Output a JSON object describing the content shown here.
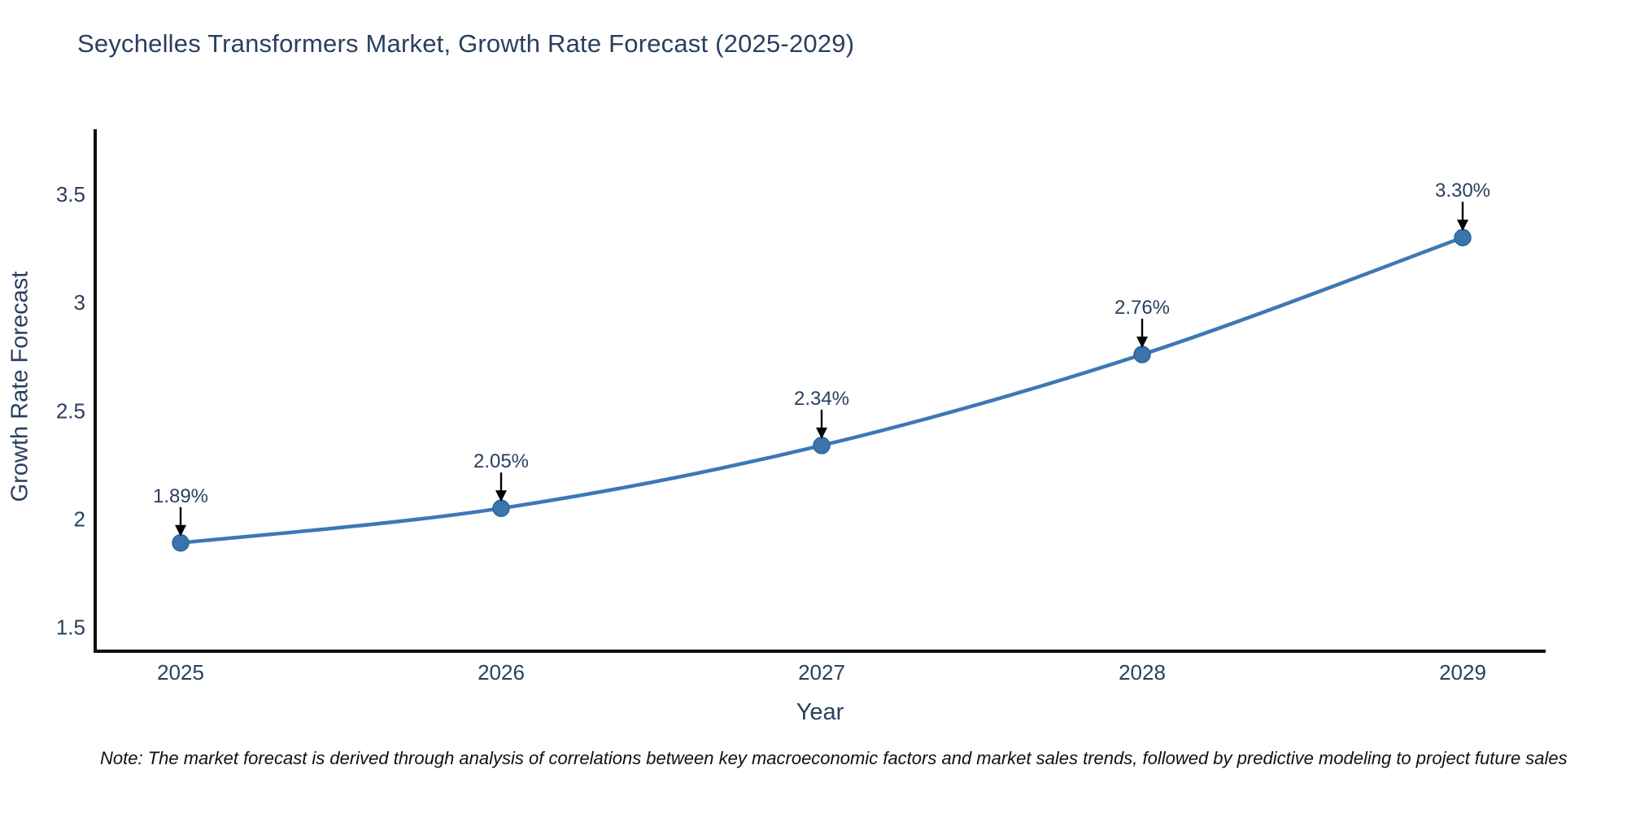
{
  "title": "Seychelles Transformers Market, Growth Rate Forecast (2025-2029)",
  "note": "Note: The market forecast is derived through analysis of correlations between key macroeconomic factors and market sales trends, followed by predictive modeling to project future sales",
  "colors": {
    "title_text": "#2a3f5f",
    "tick_text": "#2a3f5f",
    "axis_line": "#0e0e0e",
    "line": "#3d78b4",
    "marker_fill": "#3a74af",
    "marker_stroke": "#2e6398",
    "annotation_text": "#2a3f5f",
    "arrow": "#000000",
    "note_text": "#111111"
  },
  "chart_data": {
    "type": "line",
    "title": "Seychelles Transformers Market, Growth Rate Forecast (2025-2029)",
    "xlabel": "Year",
    "ylabel": "Growth Rate Forecast",
    "categories": [
      "2025",
      "2026",
      "2027",
      "2028",
      "2029"
    ],
    "series": [
      {
        "name": "Growth Rate Forecast",
        "values": [
          1.89,
          2.05,
          2.34,
          2.76,
          3.3
        ]
      }
    ],
    "point_labels": [
      "1.89%",
      "2.05%",
      "2.34%",
      "2.76%",
      "3.30%"
    ],
    "yticks": [
      1.5,
      2,
      2.5,
      3,
      3.5
    ],
    "ytick_labels": [
      "1.5",
      "2",
      "2.5",
      "3",
      "3.5"
    ],
    "ylim": [
      1.39,
      3.8
    ],
    "grid": false,
    "legend": false,
    "marker": "circle",
    "annotation_style": "value label above each point with downward black arrow"
  }
}
